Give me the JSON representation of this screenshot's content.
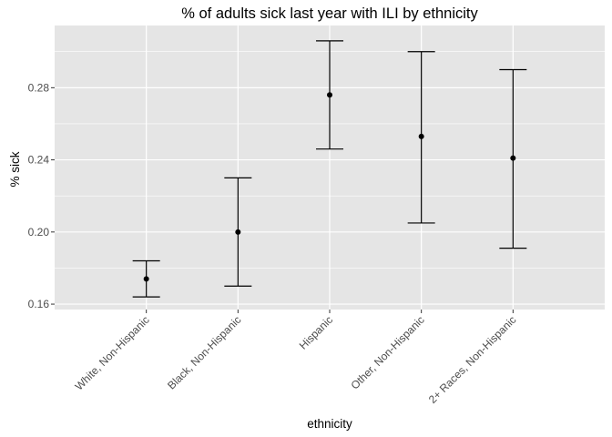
{
  "chart_data": {
    "type": "scatter",
    "title": "% of adults sick last year with ILI by ethnicity",
    "xlabel": "ethnicity",
    "ylabel": "% sick",
    "categories": [
      "White, Non-Hispanic",
      "Black, Non-Hispanic",
      "Hispanic",
      "Other, Non-Hispanic",
      "2+ Races, Non-Hispanic"
    ],
    "values": [
      0.174,
      0.2,
      0.276,
      0.253,
      0.241
    ],
    "lower": [
      0.164,
      0.17,
      0.246,
      0.205,
      0.191
    ],
    "upper": [
      0.184,
      0.23,
      0.306,
      0.3,
      0.29
    ],
    "ylim": [
      0.157,
      0.3145
    ],
    "yticks": [
      0.16,
      0.2,
      0.24,
      0.28
    ],
    "ytick_labels": [
      "0.16",
      "0.20",
      "0.24",
      "0.28"
    ],
    "grid": true,
    "colors": {
      "panel_background": "#e5e5e5",
      "grid_major": "#ffffff",
      "points": "#000000",
      "error_bars": "#000000",
      "tick_label": "#4d4d4d",
      "text": "#000000"
    }
  }
}
